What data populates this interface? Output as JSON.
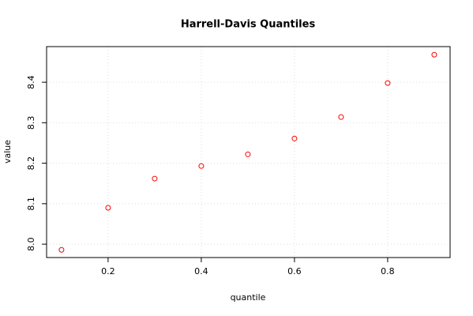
{
  "chart_data": {
    "type": "scatter",
    "title": "Harrell-Davis Quantiles",
    "x_label": "quantile",
    "y_label": "value",
    "series": [
      {
        "color": "#ff0000",
        "x": [
          0.1,
          0.2,
          0.3,
          0.4,
          0.5,
          0.6,
          0.7,
          0.8,
          0.9
        ],
        "values": [
          7.986,
          8.09,
          8.162,
          8.193,
          8.222,
          8.261,
          8.314,
          8.398,
          8.468
        ]
      }
    ],
    "xlim": [
      0.068,
      0.934
    ],
    "ylim": [
      7.967,
      8.488
    ],
    "xticks": [
      0.2,
      0.4,
      0.6,
      0.8
    ],
    "yticks": [
      {
        "value": 8,
        "label": "8.0"
      },
      8.1,
      8.2,
      8.3,
      8.4
    ],
    "grid": true
  }
}
